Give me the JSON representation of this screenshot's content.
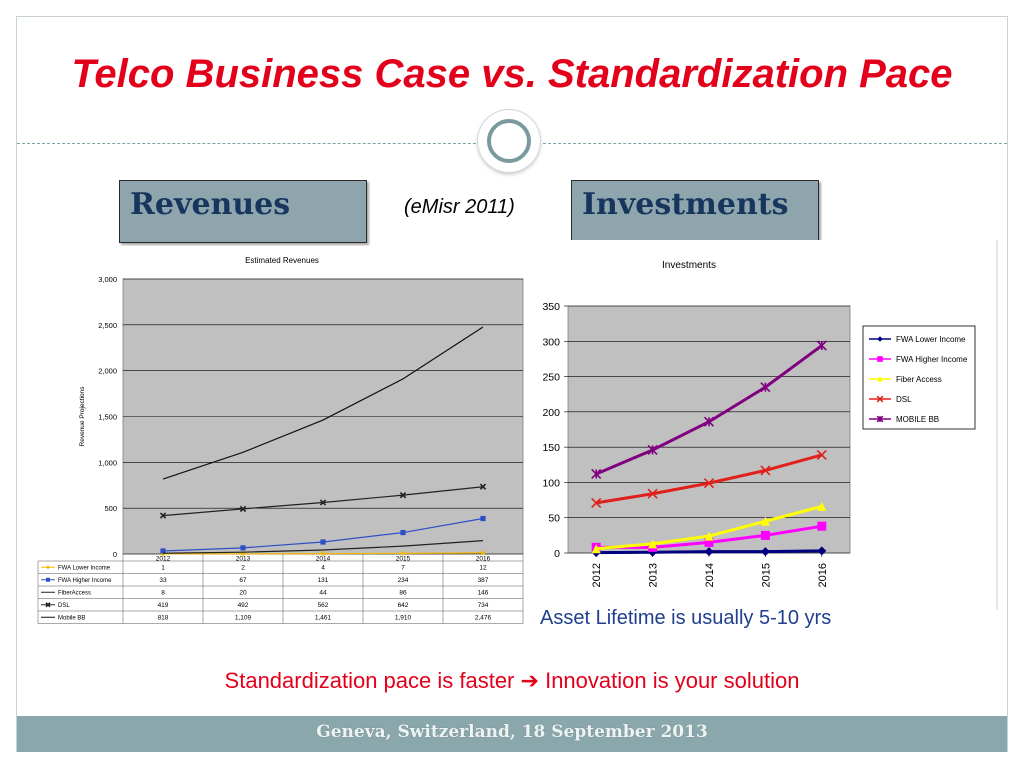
{
  "slide": {
    "title": "Telco Business Case vs. Standardization Pace",
    "revenues_label": "Revenues",
    "investments_label": "Investments",
    "source_note": "(eMisr 2011)",
    "lifetime_note": "Asset Lifetime is usually 5-10 yrs",
    "conclusion_part1": "Standardization pace is faster",
    "arrow_glyph": "➔",
    "conclusion_part2": "Innovation is your solution",
    "footer": "Geneva, Switzerland, 18 September 2013"
  },
  "chart_data": [
    {
      "type": "line",
      "title": "Estimated Revenues",
      "ylabel": "Revenue Projections",
      "xlabel": "",
      "categories": [
        "2012",
        "2013",
        "2014",
        "2015",
        "2016"
      ],
      "ylim": [
        0,
        3000
      ],
      "yticks": [
        "0",
        "500",
        "1,000",
        "1,500",
        "2,000",
        "2,500",
        "3,000"
      ],
      "grid": true,
      "legend": "data-table",
      "series": [
        {
          "name": "FWA Lower Income",
          "values": [
            1,
            2,
            4,
            7,
            12
          ],
          "labels": [
            "1",
            "2",
            "4",
            "7",
            "12"
          ],
          "color": "#f2b705",
          "marker": "diamond"
        },
        {
          "name": "FWA Higher Income",
          "values": [
            33,
            67,
            131,
            234,
            387
          ],
          "labels": [
            "33",
            "67",
            "131",
            "234",
            "387"
          ],
          "color": "#2e4fc4",
          "marker": "square"
        },
        {
          "name": "FiberAccess",
          "values": [
            8,
            20,
            44,
            86,
            146
          ],
          "labels": [
            "8",
            "20",
            "44",
            "86",
            "146"
          ],
          "color": "#222222",
          "marker": "none"
        },
        {
          "name": "DSL",
          "values": [
            419,
            492,
            562,
            642,
            734
          ],
          "labels": [
            "419",
            "492",
            "562",
            "642",
            "734"
          ],
          "color": "#222222",
          "marker": "x"
        },
        {
          "name": "Mobile BB",
          "values": [
            818,
            1109,
            1461,
            1910,
            2476
          ],
          "labels": [
            "818",
            "1,109",
            "1,461",
            "1,910",
            "2,476"
          ],
          "color": "#111111",
          "marker": "none"
        }
      ]
    },
    {
      "type": "line",
      "title": "Investments",
      "xlabel": "",
      "ylabel": "",
      "categories": [
        "2012",
        "2013",
        "2014",
        "2015",
        "2016"
      ],
      "ylim": [
        0,
        350
      ],
      "yticks": [
        "0",
        "50",
        "100",
        "150",
        "200",
        "250",
        "300",
        "350"
      ],
      "grid": true,
      "legend": "right",
      "series": [
        {
          "name": "FWA Lower Income",
          "values": [
            0.5,
            1,
            2,
            2,
            3
          ],
          "color": "#000080",
          "marker": "diamond"
        },
        {
          "name": "FWA Higher Income",
          "values": [
            8,
            8,
            15,
            25,
            38
          ],
          "color": "#ff00ff",
          "marker": "square"
        },
        {
          "name": "Fiber Access",
          "values": [
            6,
            13,
            24,
            45,
            66
          ],
          "color": "#ffff00",
          "marker": "triangle"
        },
        {
          "name": "DSL",
          "values": [
            71,
            84,
            99,
            117,
            139
          ],
          "color": "#e0201b",
          "marker": "x"
        },
        {
          "name": "MOBILE BB",
          "values": [
            112,
            146,
            186,
            235,
            294
          ],
          "color": "#800080",
          "marker": "star"
        }
      ]
    }
  ]
}
